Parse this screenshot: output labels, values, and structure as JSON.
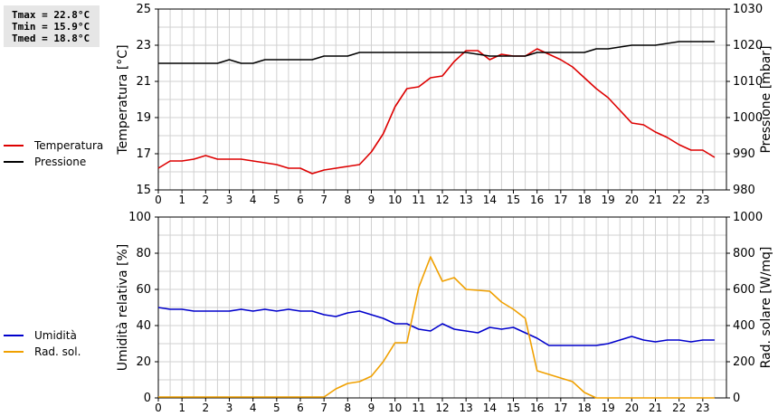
{
  "stats": {
    "tmax": "Tmax = 22.8°C",
    "tmin": "Tmin = 15.9°C",
    "tmed": "Tmed = 18.8°C"
  },
  "colors": {
    "temperature": "#dd0000",
    "pressure": "#000000",
    "humidity": "#0000cc",
    "radiation": "#f0a000",
    "grid": "#d0d0d0"
  },
  "chart_data": [
    {
      "type": "line",
      "xlabel": "",
      "x_ticks": [
        0,
        1,
        2,
        3,
        4,
        5,
        6,
        7,
        8,
        9,
        10,
        11,
        12,
        13,
        14,
        15,
        16,
        17,
        18,
        19,
        20,
        21,
        22,
        23
      ],
      "xlim": [
        0,
        24
      ],
      "grid": true,
      "legend_placement": "left",
      "y_left": {
        "label": "Temperatura [°C]",
        "lim": [
          15,
          25
        ],
        "ticks": [
          15,
          17,
          19,
          21,
          23,
          25
        ]
      },
      "y_right": {
        "label": "Pressione [mbar]",
        "lim": [
          980,
          1030
        ],
        "ticks": [
          980,
          990,
          1000,
          1010,
          1020,
          1030
        ]
      },
      "series": [
        {
          "name": "Temperatura",
          "axis": "left",
          "x": [
            0,
            0.5,
            1,
            1.5,
            2,
            2.5,
            3,
            3.5,
            4,
            4.5,
            5,
            5.5,
            6,
            6.5,
            7,
            7.5,
            8,
            8.5,
            9,
            9.5,
            10,
            10.5,
            11,
            11.5,
            12,
            12.5,
            13,
            13.5,
            14,
            14.5,
            15,
            15.5,
            16,
            16.5,
            17,
            17.5,
            18,
            18.5,
            19,
            19.5,
            20,
            20.5,
            21,
            21.5,
            22,
            22.5,
            23,
            23.5
          ],
          "y": [
            16.2,
            16.6,
            16.6,
            16.7,
            16.9,
            16.7,
            16.7,
            16.7,
            16.6,
            16.5,
            16.4,
            16.2,
            16.2,
            15.9,
            16.1,
            16.2,
            16.3,
            16.4,
            17.1,
            18.1,
            19.6,
            20.6,
            20.7,
            21.2,
            21.3,
            22.1,
            22.7,
            22.7,
            22.2,
            22.5,
            22.4,
            22.4,
            22.8,
            22.5,
            22.2,
            21.8,
            21.2,
            20.6,
            20.1,
            19.4,
            18.7,
            18.6,
            18.2,
            17.9,
            17.5,
            17.2,
            17.2,
            16.8
          ]
        },
        {
          "name": "Pressione",
          "axis": "right",
          "x": [
            0,
            1,
            2,
            2.5,
            3,
            3.5,
            4,
            4.5,
            5,
            5.5,
            6,
            6.5,
            7,
            7.5,
            8,
            8.5,
            9,
            10,
            11,
            12,
            12.5,
            13,
            14,
            15,
            15.5,
            16,
            17,
            18,
            18.5,
            19,
            20,
            20.5,
            21,
            22,
            22.5,
            23,
            23.5
          ],
          "y": [
            1015,
            1015,
            1015,
            1015,
            1016,
            1015,
            1015,
            1016,
            1016,
            1016,
            1016,
            1016,
            1017,
            1017,
            1017,
            1018,
            1018,
            1018,
            1018,
            1018,
            1018,
            1018,
            1017,
            1017,
            1017,
            1018,
            1018,
            1018,
            1019,
            1019,
            1020,
            1020,
            1020,
            1021,
            1021,
            1021,
            1021
          ]
        }
      ]
    },
    {
      "type": "line",
      "xlabel": "",
      "x_ticks": [
        0,
        1,
        2,
        3,
        4,
        5,
        6,
        7,
        8,
        9,
        10,
        11,
        12,
        13,
        14,
        15,
        16,
        17,
        18,
        19,
        20,
        21,
        22,
        23
      ],
      "xlim": [
        0,
        24
      ],
      "grid": true,
      "legend_placement": "left",
      "y_left": {
        "label": "Umidità relativa [%]",
        "lim": [
          0,
          100
        ],
        "ticks": [
          0,
          20,
          40,
          60,
          80,
          100
        ]
      },
      "y_right": {
        "label": "Rad. solare [W/mq]",
        "lim": [
          0,
          1000
        ],
        "ticks": [
          0,
          200,
          400,
          600,
          800,
          1000
        ]
      },
      "series": [
        {
          "name": "Umidità",
          "axis": "left",
          "x": [
            0,
            0.5,
            1,
            1.5,
            2,
            2.5,
            3,
            3.5,
            4,
            4.5,
            5,
            5.5,
            6,
            6.5,
            7,
            7.5,
            8,
            8.5,
            9,
            9.5,
            10,
            10.5,
            11,
            11.5,
            12,
            12.5,
            13,
            13.5,
            14,
            14.5,
            15,
            15.5,
            16,
            16.5,
            17,
            17.5,
            18,
            18.5,
            19,
            19.5,
            20,
            20.5,
            21,
            21.5,
            22,
            22.5,
            23,
            23.5
          ],
          "y": [
            50,
            49,
            49,
            48,
            48,
            48,
            48,
            49,
            48,
            49,
            48,
            49,
            48,
            48,
            46,
            45,
            47,
            48,
            46,
            44,
            41,
            41,
            38,
            37,
            41,
            38,
            37,
            36,
            39,
            38,
            39,
            36,
            33,
            29,
            29,
            29,
            29,
            29,
            30,
            32,
            34,
            32,
            31,
            32,
            32,
            31,
            32,
            32
          ]
        },
        {
          "name": "Rad. sol.",
          "axis": "right",
          "x": [
            0,
            1,
            2,
            3,
            4,
            5,
            6,
            6.5,
            7,
            7.5,
            8,
            8.5,
            9,
            9.5,
            10,
            10.5,
            11,
            11.5,
            12,
            12.5,
            13,
            13.5,
            14,
            14.5,
            15,
            15.5,
            16,
            16.5,
            17,
            17.5,
            18,
            18.5,
            19,
            20,
            21,
            22,
            23,
            23.5
          ],
          "y": [
            5,
            5,
            5,
            5,
            5,
            5,
            5,
            5,
            5,
            50,
            80,
            90,
            120,
            200,
            305,
            305,
            610,
            780,
            645,
            665,
            600,
            595,
            590,
            530,
            490,
            440,
            150,
            130,
            110,
            90,
            30,
            0,
            0,
            0,
            0,
            0,
            0,
            0
          ]
        }
      ]
    }
  ]
}
